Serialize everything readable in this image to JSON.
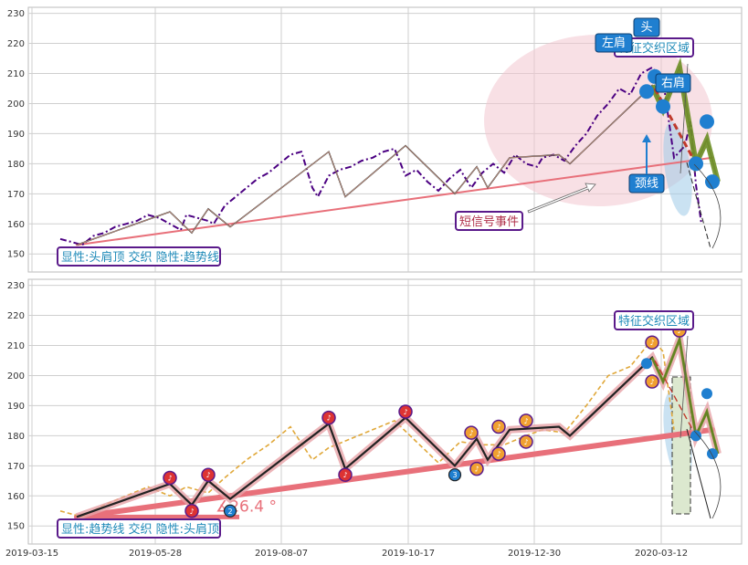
{
  "chart_data": [
    {
      "type": "line",
      "panel": "top",
      "x_tick_labels": [],
      "y_ticks": [
        150,
        160,
        170,
        180,
        190,
        200,
        210,
        220,
        230
      ],
      "ylim": [
        144,
        232
      ],
      "grid": true,
      "price_series": {
        "style": "dash-dot",
        "color": "#4b0082",
        "points": [
          [
            0.0,
            155
          ],
          [
            0.02,
            154
          ],
          [
            0.04,
            153
          ],
          [
            0.06,
            156
          ],
          [
            0.08,
            157
          ],
          [
            0.1,
            159
          ],
          [
            0.12,
            160
          ],
          [
            0.14,
            161
          ],
          [
            0.16,
            163
          ],
          [
            0.18,
            162
          ],
          [
            0.2,
            160
          ],
          [
            0.22,
            158
          ],
          [
            0.23,
            163
          ],
          [
            0.25,
            162
          ],
          [
            0.27,
            161
          ],
          [
            0.28,
            160
          ],
          [
            0.3,
            166
          ],
          [
            0.32,
            169
          ],
          [
            0.34,
            172
          ],
          [
            0.36,
            175
          ],
          [
            0.38,
            177
          ],
          [
            0.4,
            180
          ],
          [
            0.42,
            183
          ],
          [
            0.44,
            184
          ],
          [
            0.46,
            172
          ],
          [
            0.47,
            169
          ],
          [
            0.49,
            176
          ],
          [
            0.51,
            178
          ],
          [
            0.53,
            179
          ],
          [
            0.55,
            181
          ],
          [
            0.57,
            182
          ],
          [
            0.59,
            184
          ],
          [
            0.61,
            185
          ],
          [
            0.63,
            176
          ],
          [
            0.65,
            178
          ],
          [
            0.67,
            174
          ],
          [
            0.69,
            171
          ],
          [
            0.71,
            175
          ],
          [
            0.73,
            178
          ],
          [
            0.75,
            172
          ],
          [
            0.77,
            177
          ],
          [
            0.79,
            180
          ],
          [
            0.81,
            177
          ],
          [
            0.83,
            183
          ],
          [
            0.85,
            180
          ],
          [
            0.87,
            179
          ],
          [
            0.88,
            182
          ],
          [
            0.9,
            183
          ],
          [
            0.92,
            181
          ],
          [
            0.94,
            186
          ],
          [
            0.96,
            190
          ],
          [
            0.98,
            196
          ],
          [
            1.0,
            200
          ],
          [
            1.02,
            205
          ],
          [
            1.04,
            203
          ],
          [
            1.06,
            210
          ],
          [
            1.08,
            212
          ],
          [
            1.1,
            208
          ],
          [
            1.12,
            182
          ],
          [
            1.14,
            186
          ],
          [
            1.15,
            194
          ],
          [
            1.16,
            173
          ],
          [
            1.17,
            160
          ]
        ]
      },
      "zigzag": [
        [
          0.03,
          153
        ],
        [
          0.2,
          164
        ],
        [
          0.24,
          157
        ],
        [
          0.27,
          165
        ],
        [
          0.31,
          159
        ],
        [
          0.49,
          184
        ],
        [
          0.52,
          169
        ],
        [
          0.63,
          186
        ],
        [
          0.72,
          170
        ],
        [
          0.76,
          179
        ],
        [
          0.78,
          172
        ],
        [
          0.82,
          182
        ],
        [
          0.91,
          183
        ],
        [
          0.93,
          180
        ],
        [
          1.08,
          206
        ],
        [
          1.1,
          198
        ],
        [
          1.13,
          212
        ],
        [
          1.16,
          180
        ],
        [
          1.18,
          188
        ],
        [
          1.2,
          174
        ]
      ],
      "trendline": {
        "from": [
          0.03,
          153
        ],
        "to": [
          1.19,
          182
        ],
        "color": "#e8707a"
      },
      "annotations": {
        "left_shoulder": "左肩",
        "head": "头",
        "right_shoulder": "右肩",
        "neckline": "颈线",
        "feature_zone": "特征交织区域",
        "short_signal": "短信号事件",
        "footer": "显性:头肩顶 交织 隐性:趋势线"
      }
    },
    {
      "type": "line",
      "panel": "bottom",
      "x_tick_labels": [
        "2019-03-15",
        "2019-05-28",
        "2019-08-07",
        "2019-10-17",
        "2019-12-30",
        "2020-03-12"
      ],
      "y_ticks": [
        150,
        160,
        170,
        180,
        190,
        200,
        210,
        220,
        230
      ],
      "ylim": [
        144,
        232
      ],
      "grid": true,
      "price_series": {
        "style": "dashed",
        "color": "#e0a83a",
        "points": [
          [
            0.0,
            155
          ],
          [
            0.04,
            153
          ],
          [
            0.08,
            157
          ],
          [
            0.12,
            160
          ],
          [
            0.16,
            163
          ],
          [
            0.2,
            160
          ],
          [
            0.23,
            163
          ],
          [
            0.27,
            161
          ],
          [
            0.3,
            166
          ],
          [
            0.34,
            172
          ],
          [
            0.38,
            177
          ],
          [
            0.42,
            183
          ],
          [
            0.46,
            172
          ],
          [
            0.49,
            176
          ],
          [
            0.53,
            179
          ],
          [
            0.57,
            182
          ],
          [
            0.61,
            185
          ],
          [
            0.65,
            178
          ],
          [
            0.69,
            171
          ],
          [
            0.73,
            178
          ],
          [
            0.77,
            177
          ],
          [
            0.81,
            177
          ],
          [
            0.85,
            180
          ],
          [
            0.88,
            182
          ],
          [
            0.92,
            181
          ],
          [
            0.96,
            190
          ],
          [
            1.0,
            200
          ],
          [
            1.04,
            203
          ],
          [
            1.08,
            212
          ],
          [
            1.1,
            208
          ],
          [
            1.12,
            182
          ]
        ]
      },
      "zigzag": [
        [
          0.03,
          153
        ],
        [
          0.2,
          164
        ],
        [
          0.24,
          157
        ],
        [
          0.27,
          165
        ],
        [
          0.31,
          159
        ],
        [
          0.49,
          184
        ],
        [
          0.52,
          169
        ],
        [
          0.63,
          186
        ],
        [
          0.72,
          170
        ],
        [
          0.76,
          179
        ],
        [
          0.78,
          172
        ],
        [
          0.82,
          182
        ],
        [
          0.91,
          183
        ],
        [
          0.93,
          180
        ],
        [
          1.08,
          206
        ],
        [
          1.1,
          198
        ],
        [
          1.13,
          212
        ],
        [
          1.16,
          180
        ],
        [
          1.18,
          188
        ],
        [
          1.2,
          174
        ]
      ],
      "trendline": {
        "from": [
          0.03,
          153
        ],
        "to": [
          1.19,
          182
        ],
        "color": "#e8707a"
      },
      "angle_label": "∡26.4 °",
      "annotations": {
        "feature_zone": "特征交织区域",
        "footer": "显性:趋势线 交织 隐性:头肩顶"
      }
    }
  ],
  "colors": {
    "grid": "#cfcfcf",
    "axis": "#444444",
    "trend": "#e8707a",
    "label_text": "#1f8ab8",
    "label_border": "#5a1a8a",
    "badge_blue": "#1f7fd0",
    "zone_pink": "#f3c6cf",
    "olive": "#6b8e23"
  }
}
